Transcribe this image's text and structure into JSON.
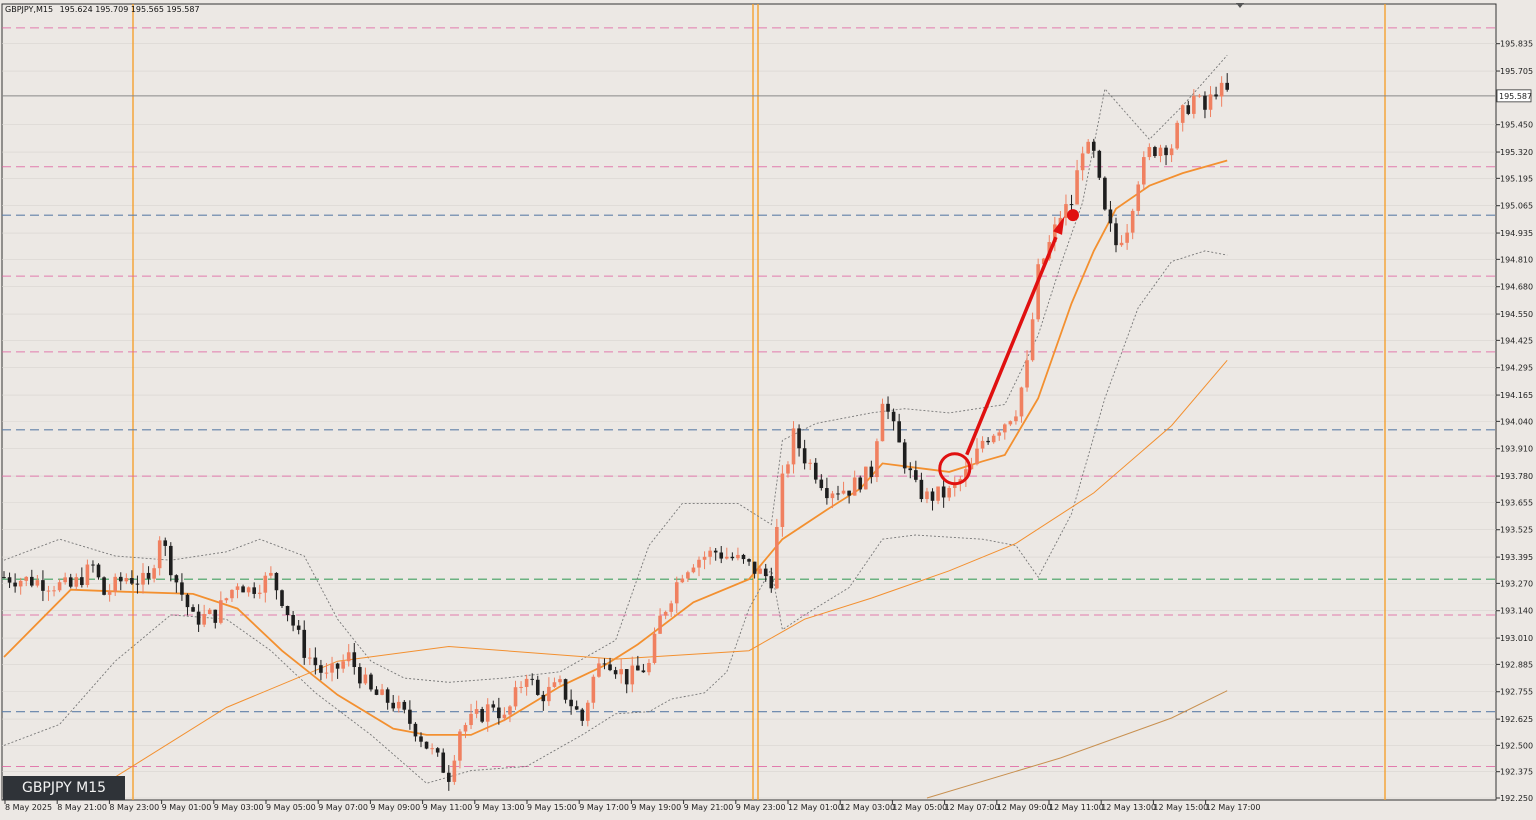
{
  "header": {
    "symbol_tf": "GBPJPY,M15",
    "ohlc": "195.624 195.709 195.565 195.587"
  },
  "badge": {
    "label": "GBPJPY M15"
  },
  "price_label": "195.587",
  "colors": {
    "bg": "#ece8e4",
    "bull": "#f08060",
    "bear": "#1e1e1e",
    "vline": "#f5a030",
    "pink": "#e060a0",
    "blue": "#6080a8",
    "green": "#40a060",
    "ma": "#f39030",
    "bb": "#777777",
    "arrow": "#e01010"
  },
  "chart_data": {
    "type": "candlestick",
    "symbol": "GBPJPY",
    "timeframe": "M15",
    "ylim": [
      192.25,
      195.9
    ],
    "y_ticks": [
      "195.835",
      "195.705",
      "195.450",
      "195.320",
      "195.195",
      "195.065",
      "194.935",
      "194.810",
      "194.680",
      "194.550",
      "194.425",
      "194.295",
      "194.165",
      "194.040",
      "193.910",
      "193.780",
      "193.655",
      "193.525",
      "193.395",
      "193.270",
      "193.140",
      "193.010",
      "192.885",
      "192.755",
      "192.625",
      "192.500",
      "192.375",
      "192.250"
    ],
    "x_ticks": [
      "8 May 2025",
      "8 May 21:00",
      "8 May 23:00",
      "9 May 01:00",
      "9 May 03:00",
      "9 May 05:00",
      "9 May 07:00",
      "9 May 09:00",
      "9 May 11:00",
      "9 May 13:00",
      "9 May 15:00",
      "9 May 17:00",
      "9 May 19:00",
      "9 May 21:00",
      "9 May 23:00",
      "12 May 01:00",
      "12 May 03:00",
      "12 May 05:00",
      "12 May 07:00",
      "12 May 09:00",
      "12 May 11:00",
      "12 May 13:00",
      "12 May 15:00",
      "12 May 17:00"
    ],
    "current_price": 195.587,
    "ohlc": {
      "open": 195.624,
      "high": 195.709,
      "low": 195.565,
      "close": 195.587
    },
    "pink_levels": [
      195.91,
      195.25,
      194.73,
      194.37,
      193.78,
      193.12,
      192.4
    ],
    "blue_levels": [
      195.02,
      194.0,
      192.66
    ],
    "green_levels": [
      193.29
    ],
    "close_path": [
      [
        0,
        193.3
      ],
      [
        6,
        193.28
      ],
      [
        12,
        193.25
      ],
      [
        16,
        193.35
      ],
      [
        18,
        193.22
      ],
      [
        22,
        193.3
      ],
      [
        26,
        193.27
      ],
      [
        28,
        193.5
      ],
      [
        31,
        193.28
      ],
      [
        34,
        193.1
      ],
      [
        38,
        193.12
      ],
      [
        42,
        193.28
      ],
      [
        44,
        193.24
      ],
      [
        48,
        193.3
      ],
      [
        50,
        193.2
      ],
      [
        54,
        192.95
      ],
      [
        58,
        192.82
      ],
      [
        62,
        192.92
      ],
      [
        66,
        192.75
      ],
      [
        70,
        192.7
      ],
      [
        74,
        192.58
      ],
      [
        76,
        192.5
      ],
      [
        80,
        192.36
      ],
      [
        82,
        192.58
      ],
      [
        86,
        192.65
      ],
      [
        88,
        192.7
      ],
      [
        90,
        192.62
      ],
      [
        94,
        192.85
      ],
      [
        96,
        192.73
      ],
      [
        100,
        192.78
      ],
      [
        104,
        192.62
      ],
      [
        106,
        192.82
      ],
      [
        108,
        192.93
      ],
      [
        112,
        192.82
      ],
      [
        116,
        192.88
      ],
      [
        118,
        193.1
      ],
      [
        122,
        193.33
      ],
      [
        124,
        193.38
      ],
      [
        128,
        193.42
      ],
      [
        132,
        193.38
      ],
      [
        136,
        193.32
      ],
      [
        138,
        193.29
      ],
      [
        140,
        193.75
      ],
      [
        142,
        193.97
      ],
      [
        144,
        193.87
      ],
      [
        146,
        193.8
      ],
      [
        148,
        193.72
      ],
      [
        152,
        193.72
      ],
      [
        156,
        193.8
      ],
      [
        158,
        194.16
      ],
      [
        160,
        194.0
      ],
      [
        162,
        193.85
      ],
      [
        164,
        193.72
      ],
      [
        166,
        193.68
      ],
      [
        170,
        193.7
      ],
      [
        172,
        193.76
      ],
      [
        174,
        193.82
      ],
      [
        176,
        193.95
      ],
      [
        180,
        194.04
      ],
      [
        182,
        194.1
      ],
      [
        184,
        194.3
      ],
      [
        186,
        194.75
      ],
      [
        188,
        194.88
      ],
      [
        190,
        195.02
      ],
      [
        192,
        195.08
      ],
      [
        194,
        195.35
      ],
      [
        196,
        195.3
      ],
      [
        198,
        195.02
      ],
      [
        200,
        194.88
      ],
      [
        202,
        194.97
      ],
      [
        204,
        195.2
      ],
      [
        206,
        195.32
      ],
      [
        208,
        195.35
      ],
      [
        210,
        195.35
      ],
      [
        212,
        195.5
      ],
      [
        214,
        195.58
      ],
      [
        216,
        195.52
      ],
      [
        218,
        195.62
      ],
      [
        220,
        195.6
      ]
    ],
    "ma_fast": [
      [
        0,
        192.92
      ],
      [
        12,
        193.24
      ],
      [
        22,
        193.23
      ],
      [
        34,
        193.22
      ],
      [
        42,
        193.15
      ],
      [
        50,
        192.95
      ],
      [
        60,
        192.74
      ],
      [
        70,
        192.58
      ],
      [
        76,
        192.55
      ],
      [
        84,
        192.55
      ],
      [
        90,
        192.62
      ],
      [
        100,
        192.78
      ],
      [
        108,
        192.88
      ],
      [
        114,
        192.98
      ],
      [
        124,
        193.18
      ],
      [
        134,
        193.29
      ],
      [
        140,
        193.48
      ],
      [
        148,
        193.62
      ],
      [
        154,
        193.72
      ],
      [
        158,
        193.84
      ],
      [
        164,
        193.82
      ],
      [
        170,
        193.8
      ],
      [
        176,
        193.85
      ],
      [
        180,
        193.88
      ],
      [
        186,
        194.15
      ],
      [
        192,
        194.6
      ],
      [
        196,
        194.85
      ],
      [
        200,
        195.05
      ],
      [
        206,
        195.16
      ],
      [
        212,
        195.22
      ],
      [
        220,
        195.28
      ]
    ],
    "ma_mid": [
      [
        20,
        192.35
      ],
      [
        40,
        192.68
      ],
      [
        60,
        192.9
      ],
      [
        80,
        192.97
      ],
      [
        110,
        192.91
      ],
      [
        134,
        192.95
      ],
      [
        144,
        193.1
      ],
      [
        156,
        193.2
      ],
      [
        170,
        193.33
      ],
      [
        182,
        193.46
      ],
      [
        196,
        193.7
      ],
      [
        210,
        194.02
      ],
      [
        220,
        194.33
      ]
    ],
    "ma_slow": [
      [
        166,
        192.25
      ],
      [
        190,
        192.44
      ],
      [
        210,
        192.63
      ],
      [
        220,
        192.76
      ]
    ],
    "bb_upper": [
      [
        0,
        193.38
      ],
      [
        10,
        193.48
      ],
      [
        20,
        193.4
      ],
      [
        30,
        193.38
      ],
      [
        40,
        193.42
      ],
      [
        46,
        193.48
      ],
      [
        54,
        193.4
      ],
      [
        60,
        193.1
      ],
      [
        66,
        192.9
      ],
      [
        72,
        192.82
      ],
      [
        80,
        192.8
      ],
      [
        90,
        192.82
      ],
      [
        100,
        192.85
      ],
      [
        110,
        193.0
      ],
      [
        116,
        193.45
      ],
      [
        122,
        193.65
      ],
      [
        132,
        193.65
      ],
      [
        138,
        193.55
      ],
      [
        140,
        193.95
      ],
      [
        146,
        194.03
      ],
      [
        156,
        194.08
      ],
      [
        162,
        194.1
      ],
      [
        170,
        194.08
      ],
      [
        180,
        194.12
      ],
      [
        186,
        194.45
      ],
      [
        190,
        194.78
      ],
      [
        194,
        195.08
      ],
      [
        198,
        195.62
      ],
      [
        202,
        195.5
      ],
      [
        206,
        195.38
      ],
      [
        212,
        195.54
      ],
      [
        218,
        195.72
      ],
      [
        220,
        195.78
      ]
    ],
    "bb_lower": [
      [
        0,
        192.5
      ],
      [
        10,
        192.6
      ],
      [
        20,
        192.9
      ],
      [
        30,
        193.12
      ],
      [
        40,
        193.1
      ],
      [
        48,
        192.95
      ],
      [
        56,
        192.75
      ],
      [
        66,
        192.55
      ],
      [
        76,
        192.32
      ],
      [
        84,
        192.38
      ],
      [
        94,
        192.4
      ],
      [
        104,
        192.55
      ],
      [
        110,
        192.65
      ],
      [
        116,
        192.66
      ],
      [
        120,
        192.72
      ],
      [
        126,
        192.75
      ],
      [
        130,
        192.85
      ],
      [
        134,
        193.15
      ],
      [
        138,
        193.34
      ],
      [
        140,
        193.05
      ],
      [
        144,
        193.12
      ],
      [
        152,
        193.25
      ],
      [
        158,
        193.48
      ],
      [
        164,
        193.5
      ],
      [
        176,
        193.48
      ],
      [
        182,
        193.45
      ],
      [
        186,
        193.3
      ],
      [
        192,
        193.6
      ],
      [
        198,
        194.15
      ],
      [
        204,
        194.58
      ],
      [
        210,
        194.8
      ],
      [
        216,
        194.85
      ],
      [
        220,
        194.83
      ]
    ]
  }
}
